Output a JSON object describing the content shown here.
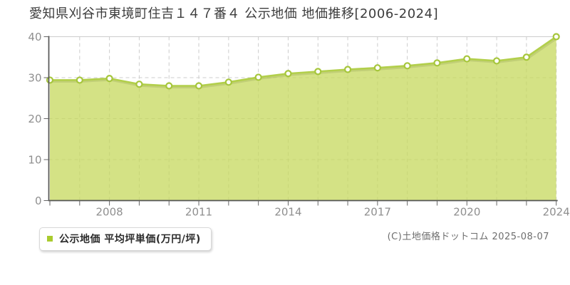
{
  "chart_data": {
    "type": "area",
    "title": "愛知県刈谷市東境町住吉１４７番４ 公示地価 地価推移[2006-2024]",
    "categories": [
      "2006",
      "2007",
      "2008",
      "2009",
      "2010",
      "2011",
      "2012",
      "2013",
      "2014",
      "2015",
      "2016",
      "2017",
      "2018",
      "2019",
      "2020",
      "2021",
      "2022",
      "2024"
    ],
    "values": [
      29.4,
      29.4,
      29.8,
      28.4,
      28.0,
      28.0,
      28.9,
      30.1,
      31.0,
      31.5,
      32.0,
      32.4,
      32.9,
      33.6,
      34.6,
      34.1,
      35.0,
      40.0
    ],
    "xlabel": "",
    "ylabel": "",
    "ylim": [
      0,
      40
    ],
    "y_ticks": [
      0,
      10,
      20,
      30,
      40
    ],
    "x_tick_label_indices": [
      2,
      5,
      8,
      11,
      14,
      17
    ],
    "x_tick_labels_visible": [
      "2008",
      "2011",
      "2014",
      "2017",
      "2020",
      "2024"
    ],
    "grid": "dashed",
    "legend_position": "bottom-left",
    "legend": {
      "label": "公示地価 平均坪単価(万円/坪)",
      "swatch_color": "#a9cb2e"
    },
    "colors": {
      "area_fill": "rgba(197,216,92,0.75)",
      "line": "#b2cf4b",
      "marker_fill": "#fffef8",
      "marker_stroke": "#a6c63c",
      "gridline": "#cccccc",
      "axis": "#555555",
      "tick_label": "#8f8f8f"
    }
  },
  "footer": {
    "copyright": "(C)土地価格ドットコム 2025-08-07"
  }
}
